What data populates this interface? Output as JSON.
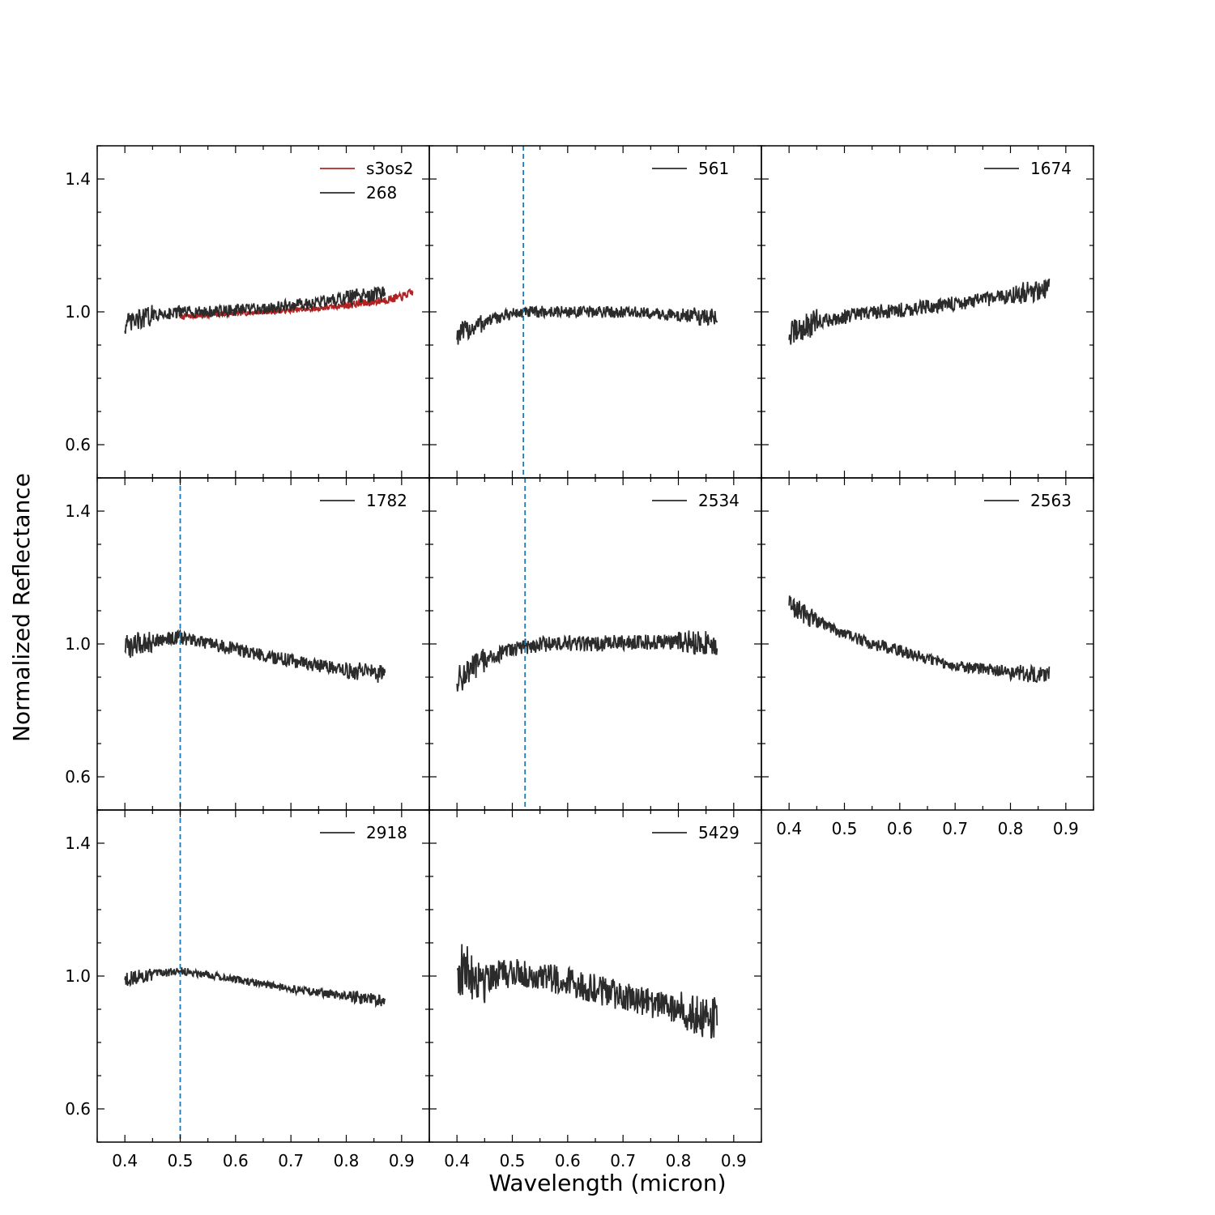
{
  "chart_data": {
    "type": "line",
    "xlabel": "Wavelength (micron)",
    "ylabel": "Normalized Reflectance",
    "xlim": [
      0.35,
      0.95
    ],
    "ylim": [
      0.5,
      1.5
    ],
    "xticks": [
      0.4,
      0.5,
      0.6,
      0.7,
      0.8,
      0.9
    ],
    "yticks": [
      0.6,
      1.0,
      1.4
    ],
    "grid": false,
    "legend_position": "top-right",
    "colors": {
      "spectrum": "#2b2b2b",
      "reference": "#b22222",
      "marker": "#1f77b4"
    },
    "panels": [
      {
        "id": "p268",
        "series": [
          {
            "name": "s3os2",
            "color": "#b22222",
            "x": [
              0.5,
              0.55,
              0.6,
              0.65,
              0.7,
              0.75,
              0.8,
              0.85,
              0.9,
              0.92
            ],
            "y": [
              0.985,
              0.99,
              0.995,
              1.0,
              1.005,
              1.01,
              1.02,
              1.03,
              1.045,
              1.06
            ]
          },
          {
            "name": "268",
            "color": "#2b2b2b",
            "x": [
              0.4,
              0.45,
              0.5,
              0.55,
              0.6,
              0.65,
              0.7,
              0.75,
              0.8,
              0.85,
              0.87
            ],
            "y": [
              0.96,
              0.99,
              1.0,
              1.0,
              1.005,
              1.01,
              1.02,
              1.03,
              1.04,
              1.05,
              1.055
            ]
          }
        ],
        "vline": null
      },
      {
        "id": "p561",
        "series": [
          {
            "name": "561",
            "color": "#2b2b2b",
            "x": [
              0.4,
              0.45,
              0.5,
              0.55,
              0.6,
              0.65,
              0.7,
              0.75,
              0.8,
              0.85,
              0.87
            ],
            "y": [
              0.93,
              0.97,
              0.995,
              1.0,
              1.0,
              1.0,
              1.0,
              0.995,
              0.99,
              0.985,
              0.98
            ]
          }
        ],
        "vline": 0.52
      },
      {
        "id": "p1674",
        "series": [
          {
            "name": "1674",
            "color": "#2b2b2b",
            "x": [
              0.4,
              0.45,
              0.5,
              0.55,
              0.6,
              0.65,
              0.7,
              0.75,
              0.8,
              0.85,
              0.87
            ],
            "y": [
              0.93,
              0.97,
              0.985,
              1.0,
              1.005,
              1.015,
              1.025,
              1.035,
              1.05,
              1.065,
              1.07
            ]
          }
        ],
        "vline": null
      },
      {
        "id": "p1782",
        "series": [
          {
            "name": "1782",
            "color": "#2b2b2b",
            "x": [
              0.4,
              0.45,
              0.5,
              0.55,
              0.6,
              0.65,
              0.7,
              0.75,
              0.8,
              0.85,
              0.87
            ],
            "y": [
              0.99,
              1.01,
              1.02,
              1.0,
              0.985,
              0.965,
              0.95,
              0.935,
              0.925,
              0.91,
              0.905
            ]
          }
        ],
        "vline": 0.5
      },
      {
        "id": "p2534",
        "series": [
          {
            "name": "2534",
            "color": "#2b2b2b",
            "x": [
              0.4,
              0.45,
              0.5,
              0.55,
              0.6,
              0.65,
              0.7,
              0.75,
              0.8,
              0.85,
              0.87
            ],
            "y": [
              0.89,
              0.95,
              0.985,
              1.0,
              1.0,
              1.0,
              1.005,
              1.005,
              1.005,
              1.005,
              1.0
            ]
          }
        ],
        "vline": 0.523
      },
      {
        "id": "p2563",
        "series": [
          {
            "name": "2563",
            "color": "#2b2b2b",
            "x": [
              0.4,
              0.45,
              0.5,
              0.55,
              0.6,
              0.65,
              0.7,
              0.75,
              0.8,
              0.85,
              0.87
            ],
            "y": [
              1.12,
              1.07,
              1.03,
              1.0,
              0.98,
              0.955,
              0.935,
              0.925,
              0.915,
              0.91,
              0.905
            ]
          }
        ],
        "vline": null
      },
      {
        "id": "p2918",
        "series": [
          {
            "name": "2918",
            "color": "#2b2b2b",
            "x": [
              0.4,
              0.45,
              0.5,
              0.55,
              0.6,
              0.65,
              0.7,
              0.75,
              0.8,
              0.85,
              0.87
            ],
            "y": [
              0.99,
              1.005,
              1.015,
              1.005,
              0.99,
              0.975,
              0.96,
              0.95,
              0.94,
              0.93,
              0.925
            ]
          }
        ],
        "vline": 0.5
      },
      {
        "id": "p5429",
        "series": [
          {
            "name": "5429",
            "color": "#2b2b2b",
            "x": [
              0.4,
              0.45,
              0.5,
              0.55,
              0.6,
              0.65,
              0.7,
              0.75,
              0.8,
              0.85,
              0.87
            ],
            "y": [
              1.02,
              1.0,
              1.01,
              1.0,
              0.985,
              0.96,
              0.94,
              0.92,
              0.9,
              0.88,
              0.87
            ]
          }
        ],
        "vline": null
      }
    ]
  }
}
